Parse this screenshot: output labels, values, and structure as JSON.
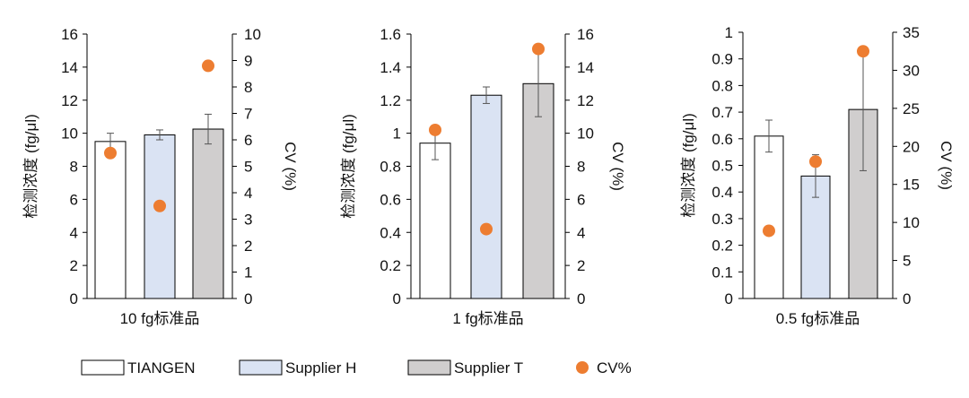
{
  "colors": {
    "TIANGEN": "#ffffff",
    "Supplier H": "#dae3f3",
    "Supplier T": "#d0cece",
    "CV%": "#ed7d31",
    "axis": "#000000"
  },
  "legend": [
    {
      "name": "TIANGEN",
      "kind": "bar"
    },
    {
      "name": "Supplier H",
      "kind": "bar"
    },
    {
      "name": "Supplier T",
      "kind": "bar"
    },
    {
      "name": "CV%",
      "kind": "marker"
    }
  ],
  "chart_data": [
    {
      "type": "bar",
      "xlabel": "10 fg标准品",
      "ylabel": "检测浓度 (fg/μl)",
      "y2label": "CV (%)",
      "ylim": [
        0,
        16
      ],
      "yticks": [
        0,
        2,
        4,
        6,
        8,
        10,
        12,
        14,
        16
      ],
      "y2lim": [
        0,
        10
      ],
      "y2ticks": [
        0,
        1,
        2,
        3,
        4,
        5,
        6,
        7,
        8,
        9,
        10
      ],
      "categories": [
        "TIANGEN",
        "Supplier H",
        "Supplier T"
      ],
      "values": [
        9.5,
        9.9,
        10.25
      ],
      "errors": [
        0.5,
        0.3,
        0.9
      ],
      "cv": [
        5.5,
        3.5,
        8.8
      ]
    },
    {
      "type": "bar",
      "xlabel": "1 fg标准品",
      "ylabel": "检测浓度 (fg/μl)",
      "y2label": "CV (%)",
      "ylim": [
        0,
        1.6
      ],
      "yticks": [
        0,
        0.2,
        0.4,
        0.6,
        0.8,
        1,
        1.2,
        1.4,
        1.6
      ],
      "y2lim": [
        0,
        16
      ],
      "y2ticks": [
        0,
        2,
        4,
        6,
        8,
        10,
        12,
        14,
        16
      ],
      "categories": [
        "TIANGEN",
        "Supplier H",
        "Supplier T"
      ],
      "values": [
        0.94,
        1.23,
        1.3
      ],
      "errors": [
        0.1,
        0.05,
        0.2
      ],
      "cv": [
        10.2,
        4.2,
        15.1
      ]
    },
    {
      "type": "bar",
      "xlabel": "0.5 fg标准品",
      "ylabel": "检测浓度 (fg/μl)",
      "y2label": "CV (%)",
      "ylim": [
        0,
        1
      ],
      "yticks": [
        0,
        0.1,
        0.2,
        0.3,
        0.4,
        0.5,
        0.6,
        0.7,
        0.8,
        0.9,
        1
      ],
      "y2lim": [
        0,
        35
      ],
      "y2ticks": [
        0,
        5,
        10,
        15,
        20,
        25,
        30,
        35
      ],
      "categories": [
        "TIANGEN",
        "Supplier H",
        "Supplier T"
      ],
      "values": [
        0.61,
        0.46,
        0.71
      ],
      "errors": [
        0.06,
        0.08,
        0.23
      ],
      "cv": [
        8.9,
        18.0,
        32.5
      ]
    }
  ]
}
